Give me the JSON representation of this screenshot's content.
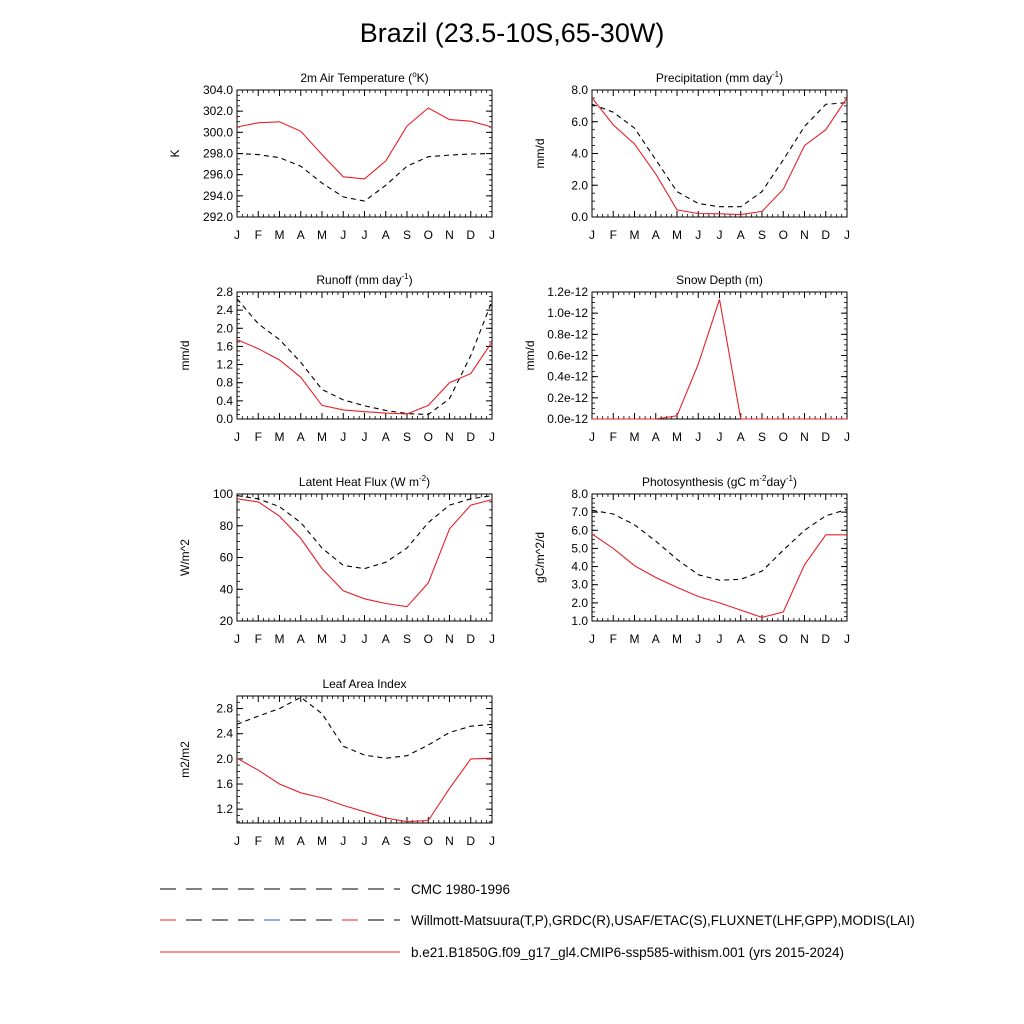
{
  "title": "Brazil (23.5-10S,65-30W)",
  "months": [
    "J",
    "F",
    "M",
    "A",
    "M",
    "J",
    "J",
    "A",
    "S",
    "O",
    "N",
    "D",
    "J"
  ],
  "colors": {
    "model": "#e8202a",
    "obs": "#000000"
  },
  "legend": [
    {
      "label": "CMC 1980-1996",
      "style": "dashed",
      "color": "#000000"
    },
    {
      "label": "Willmott-Matsuura(T,P),GRDC(R),USAF/ETAC(S),FLUXNET(LHF,GPP),MODIS(LAI)",
      "style": "dashed-multicolor",
      "color": "#000000"
    },
    {
      "label": "b.e21.B1850G.f09_g17_gl4.CMIP6-ssp585-withism.001 (yrs 2015-2024)",
      "style": "solid",
      "color": "#e8202a"
    }
  ],
  "chart_data": [
    {
      "type": "line",
      "title": "2m Air Temperature (",
      "title_sup": "o",
      "title_after": "K)",
      "ylabel": "K",
      "ylim": [
        292,
        304
      ],
      "yticks": [
        292,
        294,
        296,
        298,
        300,
        302,
        304
      ],
      "ytick_labels": [
        "292.0",
        "294.0",
        "296.0",
        "298.0",
        "300.0",
        "302.0",
        "304.0"
      ],
      "series": [
        {
          "style": "dashed",
          "values": [
            298.0,
            297.9,
            297.6,
            296.8,
            295.2,
            293.9,
            293.5,
            295.0,
            296.8,
            297.7,
            297.85,
            297.95,
            298.0
          ]
        },
        {
          "style": "solid",
          "values": [
            300.5,
            300.9,
            301.0,
            300.1,
            297.9,
            295.8,
            295.6,
            297.3,
            300.6,
            302.3,
            301.2,
            301.05,
            300.5
          ]
        }
      ]
    },
    {
      "type": "line",
      "title": "Precipitation (mm day",
      "title_sup": "-1",
      "title_after": ")",
      "ylabel": "mm/d",
      "ylim": [
        0,
        8
      ],
      "yticks": [
        0,
        2,
        4,
        6,
        8
      ],
      "ytick_labels": [
        "0.0",
        "2.0",
        "4.0",
        "6.0",
        "8.0"
      ],
      "series": [
        {
          "style": "dashed",
          "values": [
            7.1,
            6.6,
            5.6,
            3.6,
            1.6,
            0.85,
            0.65,
            0.65,
            1.6,
            3.6,
            5.7,
            7.1,
            7.2
          ]
        },
        {
          "style": "solid",
          "values": [
            7.5,
            5.8,
            4.6,
            2.7,
            0.45,
            0.22,
            0.2,
            0.15,
            0.35,
            1.75,
            4.5,
            5.5,
            7.5
          ]
        }
      ]
    },
    {
      "type": "line",
      "title": "Runoff (mm day",
      "title_sup": "-1",
      "title_after": ")",
      "ylabel": "mm/d",
      "ylim": [
        0,
        2.8
      ],
      "yticks": [
        0,
        0.4,
        0.8,
        1.2,
        1.6,
        2.0,
        2.4,
        2.8
      ],
      "ytick_labels": [
        "0.0",
        "0.4",
        "0.8",
        "1.2",
        "1.6",
        "2.0",
        "2.4",
        "2.8"
      ],
      "series": [
        {
          "style": "dashed",
          "values": [
            2.65,
            2.1,
            1.75,
            1.25,
            0.65,
            0.42,
            0.29,
            0.19,
            0.12,
            0.1,
            0.45,
            1.4,
            2.6
          ]
        },
        {
          "style": "solid",
          "values": [
            1.75,
            1.55,
            1.3,
            0.92,
            0.3,
            0.2,
            0.16,
            0.13,
            0.11,
            0.3,
            0.8,
            1.0,
            1.7
          ]
        }
      ]
    },
    {
      "type": "line",
      "title": "Snow Depth (m)",
      "title_sup": "",
      "title_after": "",
      "ylabel": "mm/d",
      "ylim": [
        0,
        1.2
      ],
      "yunit_note": "values in units of 1e-12 m",
      "yticks": [
        0,
        0.2,
        0.4,
        0.6,
        0.8,
        1.0,
        1.2
      ],
      "ytick_labels": [
        "0.0e-12",
        "0.2e-12",
        "0.4e-12",
        "0.6e-12",
        "0.8e-12",
        "1.0e-12",
        "1.2e-12"
      ],
      "series": [
        {
          "style": "dashed",
          "values": [
            0,
            0,
            0,
            0,
            0,
            0,
            0,
            0,
            0,
            0,
            0,
            0,
            0
          ]
        },
        {
          "style": "solid",
          "values": [
            0,
            0,
            0,
            0,
            0.03,
            0.52,
            1.13,
            0,
            0,
            0,
            0,
            0,
            0
          ]
        }
      ]
    },
    {
      "type": "line",
      "title": "Latent Heat Flux (W m",
      "title_sup": "-2",
      "title_after": ")",
      "ylabel": "W/m^2",
      "ylim": [
        20,
        100
      ],
      "yticks": [
        20,
        40,
        60,
        80,
        100
      ],
      "ytick_labels": [
        "20",
        "40",
        "60",
        "80",
        "100"
      ],
      "series": [
        {
          "style": "dashed",
          "values": [
            99,
            97,
            92,
            82,
            66,
            55,
            53,
            57,
            66,
            82,
            93,
            97,
            99
          ]
        },
        {
          "style": "solid",
          "values": [
            97,
            95,
            86,
            72,
            53,
            39,
            34,
            31,
            29,
            44,
            78,
            93,
            96.5
          ]
        }
      ]
    },
    {
      "type": "line",
      "title": "Photosynthesis (gC m",
      "title_sup": "-2",
      "title_after": "day",
      "title_sup2": "-1",
      "title_end": ")",
      "ylabel": "gC/m^2/d",
      "ylim": [
        1,
        8
      ],
      "yticks": [
        1,
        2,
        3,
        4,
        5,
        6,
        7,
        8
      ],
      "ytick_labels": [
        "1.0",
        "2.0",
        "3.0",
        "4.0",
        "5.0",
        "6.0",
        "7.0",
        "8.0"
      ],
      "series": [
        {
          "style": "dashed",
          "values": [
            7.1,
            6.9,
            6.3,
            5.4,
            4.4,
            3.55,
            3.25,
            3.3,
            3.75,
            4.9,
            6.0,
            6.8,
            7.15
          ]
        },
        {
          "style": "solid",
          "values": [
            5.8,
            5.0,
            4.05,
            3.4,
            2.85,
            2.35,
            2.0,
            1.6,
            1.2,
            1.5,
            4.1,
            5.75,
            5.75
          ]
        }
      ]
    },
    {
      "type": "line",
      "title": "Leaf Area Index",
      "title_sup": "",
      "title_after": "",
      "ylabel": "m2/m2",
      "ylim": [
        0.98,
        3.0
      ],
      "yticks": [
        1.2,
        1.6,
        2.0,
        2.4,
        2.8
      ],
      "ytick_labels": [
        "1.2",
        "1.6",
        "2.0",
        "2.4",
        "2.8"
      ],
      "series": [
        {
          "style": "dashed",
          "values": [
            2.55,
            2.68,
            2.8,
            2.98,
            2.72,
            2.2,
            2.06,
            2.01,
            2.05,
            2.22,
            2.42,
            2.52,
            2.55
          ]
        },
        {
          "style": "solid",
          "values": [
            2.01,
            1.82,
            1.6,
            1.46,
            1.38,
            1.26,
            1.16,
            1.06,
            1.0,
            1.02,
            1.53,
            2.0,
            2.01
          ]
        }
      ]
    }
  ]
}
